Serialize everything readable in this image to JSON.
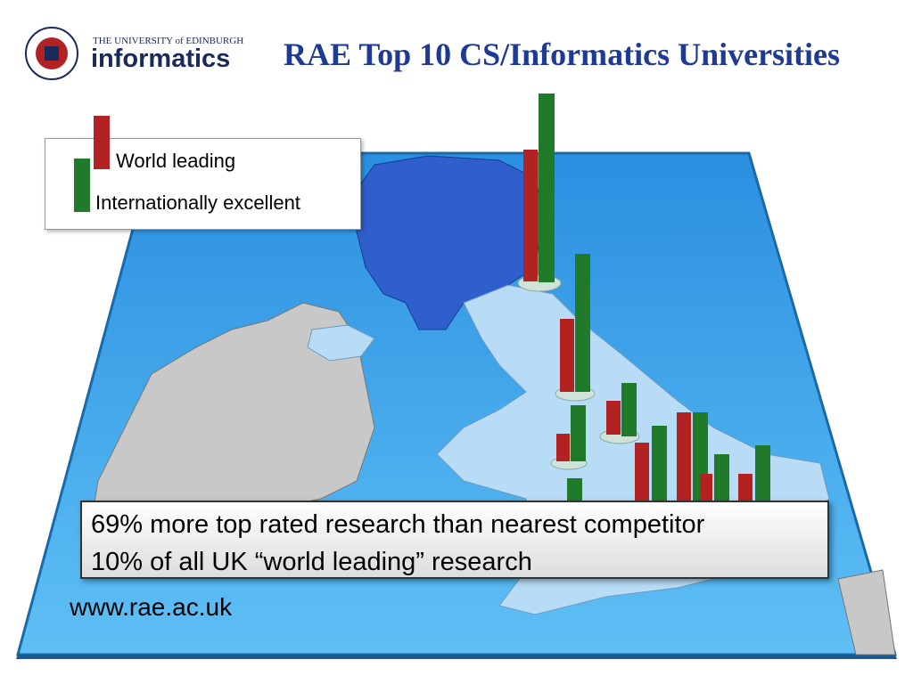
{
  "header": {
    "university": "THE UNIVERSITY of EDINBURGH",
    "unit": "informatics",
    "title": "RAE Top 10 CS/Informatics Universities"
  },
  "legend": {
    "items": [
      "World leading",
      "Internationally excellent"
    ]
  },
  "callout": {
    "lines": [
      "69% more top rated research than nearest competitor",
      "10% of all UK “world leading” research"
    ]
  },
  "footer": {
    "url": "www.rae.ac.uk"
  }
}
